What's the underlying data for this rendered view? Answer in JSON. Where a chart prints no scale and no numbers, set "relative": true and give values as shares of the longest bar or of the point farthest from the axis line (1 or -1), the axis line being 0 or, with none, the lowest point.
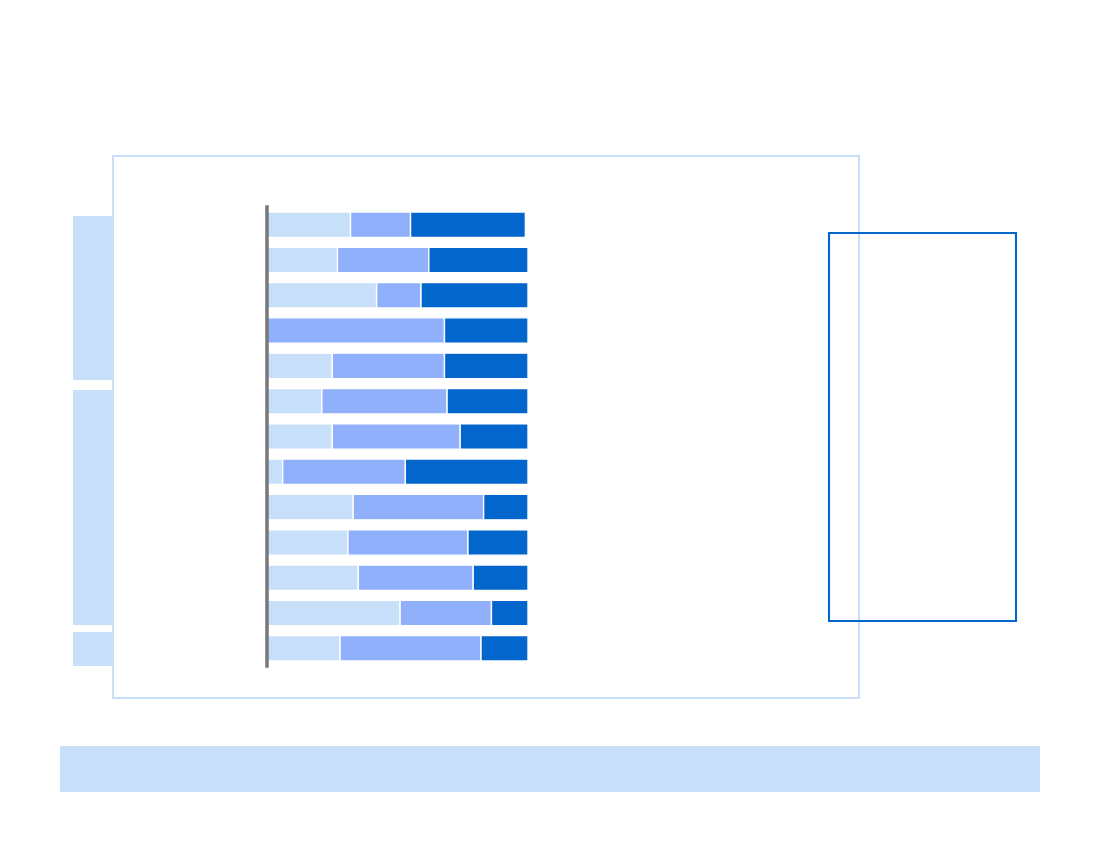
{
  "chart_data": {
    "type": "bar",
    "orientation": "horizontal",
    "stacked": true,
    "relative": true,
    "categories": [
      null,
      null,
      null,
      null,
      null,
      null,
      null,
      null,
      null,
      null,
      null,
      null,
      null
    ],
    "series": [
      {
        "color": "#c8dffa",
        "values": [
          0.32,
          0.27,
          0.42,
          0,
          0.25,
          0.21,
          0.25,
          0.06,
          0.33,
          0.31,
          0.35,
          0.51,
          0.28
        ]
      },
      {
        "color": "#91b0fc",
        "values": [
          0.23,
          0.35,
          0.17,
          0.68,
          0.43,
          0.48,
          0.49,
          0.47,
          0.5,
          0.46,
          0.44,
          0.35,
          0.54
        ]
      },
      {
        "color": "#0366cc",
        "values": [
          0.44,
          0.38,
          0.41,
          0.32,
          0.32,
          0.31,
          0.26,
          0.47,
          0.17,
          0.23,
          0.21,
          0.14,
          0.18
        ]
      }
    ],
    "grid": false,
    "legend": false
  }
}
